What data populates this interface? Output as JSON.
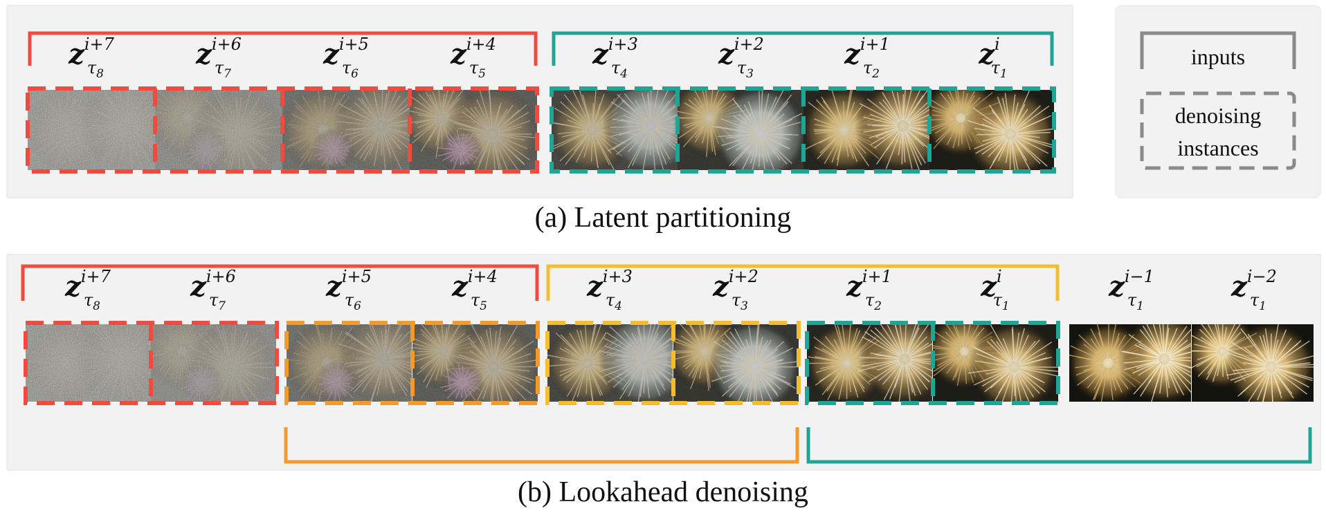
{
  "colors": {
    "red": "#ef4b3f",
    "teal": "#1ea596",
    "orange": "#f29b2a",
    "yellow": "#f4bd2f",
    "gray": "#8a8a8a",
    "panel": "#f2f2f2"
  },
  "legend": {
    "inputs": "inputs",
    "denoising_line1": "denoising",
    "denoising_line2": "instances"
  },
  "panel_a": {
    "caption": "(a) Latent partitioning",
    "frames": [
      {
        "base": "z",
        "sup": "i+7",
        "sub": "τ",
        "subidx": "8",
        "noise": 1.0
      },
      {
        "base": "z",
        "sup": "i+6",
        "sub": "τ",
        "subidx": "7",
        "noise": 0.85
      },
      {
        "base": "z",
        "sup": "i+5",
        "sub": "τ",
        "subidx": "6",
        "noise": 0.6
      },
      {
        "base": "z",
        "sup": "i+4",
        "sub": "τ",
        "subidx": "5",
        "noise": 0.45
      },
      {
        "base": "z",
        "sup": "i+3",
        "sub": "τ",
        "subidx": "4",
        "noise": 0.3
      },
      {
        "base": "z",
        "sup": "i+2",
        "sub": "τ",
        "subidx": "3",
        "noise": 0.2
      },
      {
        "base": "z",
        "sup": "i+1",
        "sub": "τ",
        "subidx": "2",
        "noise": 0.1
      },
      {
        "base": "z",
        "sup": "i",
        "sub": "τ",
        "subidx": "1",
        "noise": 0.05
      }
    ]
  },
  "panel_b": {
    "caption": "(b) Lookahead denoising",
    "frames": [
      {
        "base": "z",
        "sup": "i+7",
        "sub": "τ",
        "subidx": "8",
        "noise": 1.0
      },
      {
        "base": "z",
        "sup": "i+6",
        "sub": "τ",
        "subidx": "7",
        "noise": 0.85
      },
      {
        "base": "z",
        "sup": "i+5",
        "sub": "τ",
        "subidx": "6",
        "noise": 0.6
      },
      {
        "base": "z",
        "sup": "i+4",
        "sub": "τ",
        "subidx": "5",
        "noise": 0.45
      },
      {
        "base": "z",
        "sup": "i+3",
        "sub": "τ",
        "subidx": "4",
        "noise": 0.3
      },
      {
        "base": "z",
        "sup": "i+2",
        "sub": "τ",
        "subidx": "3",
        "noise": 0.2
      },
      {
        "base": "z",
        "sup": "i+1",
        "sub": "τ",
        "subidx": "2",
        "noise": 0.1
      },
      {
        "base": "z",
        "sup": "i",
        "sub": "τ",
        "subidx": "1",
        "noise": 0.05
      },
      {
        "base": "z",
        "sup": "i−1",
        "sub": "τ",
        "subidx": "1",
        "noise": 0.0
      },
      {
        "base": "z",
        "sup": "i−2",
        "sub": "τ",
        "subidx": "1",
        "noise": 0.0
      }
    ]
  }
}
